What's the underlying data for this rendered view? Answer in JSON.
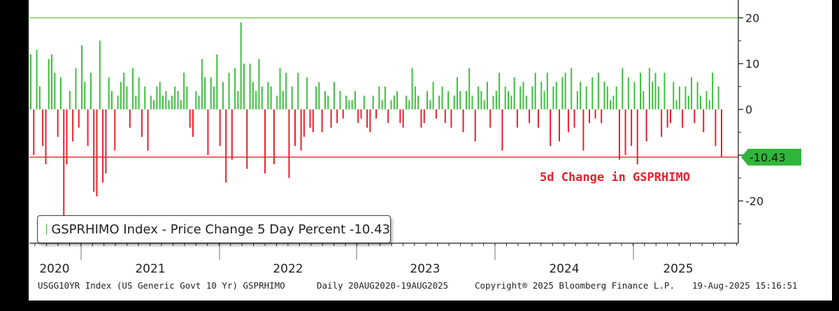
{
  "chart_data": {
    "type": "bar",
    "title": "",
    "annotation": "5d Change in GSPRHIMO",
    "legend": {
      "label": "GSPRHIMO Index - Price Change 5 Day Percent -10.43",
      "color": "#3cc13c",
      "placement": "bottom-left"
    },
    "last_value_label": "-10.43",
    "y_axis": {
      "side": "right",
      "ticks": [
        20,
        10,
        0,
        -10,
        -20
      ],
      "tick_labels": [
        "20",
        "10",
        "0",
        "-10",
        "-20"
      ],
      "ylim": [
        -25.5,
        26
      ]
    },
    "x_axis": {
      "year_labels": [
        "2020",
        "2021",
        "2022",
        "2023",
        "2024",
        "2025"
      ]
    },
    "reference_lines": [
      {
        "value": 20,
        "color": "#7ec850"
      },
      {
        "value": -10.43,
        "color": "#e8212b"
      }
    ],
    "colors": {
      "positive": "#3cc13c",
      "negative": "#e8212b",
      "badge": "#2fb53a"
    },
    "series": [
      {
        "name": "GSPRHIMO Index - Price Change 5 Day Percent",
        "x_start": "2020-08-20",
        "x_end": "2025-08-19",
        "values": [
          12,
          -10,
          13,
          5,
          -8,
          -12,
          11,
          12,
          8,
          -6,
          7,
          -25,
          -12,
          4,
          -7,
          9,
          -4,
          14,
          6,
          -8,
          8,
          -18,
          -19,
          15,
          -16,
          -14,
          7,
          4,
          -9,
          3,
          6,
          8,
          5,
          -4,
          9,
          3,
          7,
          -6,
          5,
          -9,
          3,
          2,
          5,
          6,
          3,
          4,
          2,
          3,
          5,
          4,
          2,
          8,
          5,
          -4,
          -6,
          4,
          3,
          11,
          7,
          -10,
          7,
          5,
          12,
          -8,
          6,
          -16,
          8,
          -11,
          9,
          4,
          19,
          10,
          -13,
          10,
          6,
          4,
          11,
          5,
          -14,
          6,
          5,
          -12,
          3,
          9,
          4,
          8,
          -15,
          5,
          -8,
          8,
          -9,
          -6,
          7,
          -4,
          -5,
          5,
          6,
          -5,
          4,
          3,
          -4,
          6,
          -3,
          4,
          -2,
          3,
          2,
          2,
          4,
          -3,
          -2,
          3,
          -4,
          -5,
          3,
          -2,
          5,
          2,
          5,
          -3,
          2,
          3,
          4,
          -3,
          -4,
          3,
          2,
          9,
          5,
          3,
          -4,
          -3,
          4,
          2,
          6,
          -2,
          3,
          5,
          -3,
          4,
          -4,
          3,
          7,
          4,
          -5,
          4,
          9,
          3,
          -7,
          5,
          4,
          2,
          6,
          -4,
          3,
          4,
          8,
          -9,
          5,
          4,
          3,
          7,
          -4,
          5,
          6,
          3,
          -3,
          5,
          8,
          -4,
          6,
          4,
          8,
          -8,
          5,
          6,
          -7,
          7,
          8,
          -5,
          9,
          -4,
          4,
          6,
          -9,
          5,
          -3,
          7,
          -2,
          8,
          -3,
          6,
          5,
          2,
          3,
          5,
          -11,
          9,
          -10,
          7,
          -8,
          6,
          -12,
          8,
          4,
          -7,
          9,
          6,
          8,
          5,
          -6,
          8,
          -4,
          -3,
          6,
          2,
          5,
          -4,
          5,
          3,
          7,
          -3,
          6,
          3,
          -5,
          4,
          2,
          8,
          -8,
          5,
          -10.43
        ],
        "last_value": -10.43
      }
    ]
  },
  "footer": {
    "security": "USGG10YR Index (US Generic Govt 10 Yr) GSPRHIMO",
    "range": "Daily 20AUG2020-19AUG2025",
    "copyright": "Copyright® 2025 Bloomberg Finance L.P.",
    "timestamp": "19-Aug-2025 15:16:51"
  }
}
